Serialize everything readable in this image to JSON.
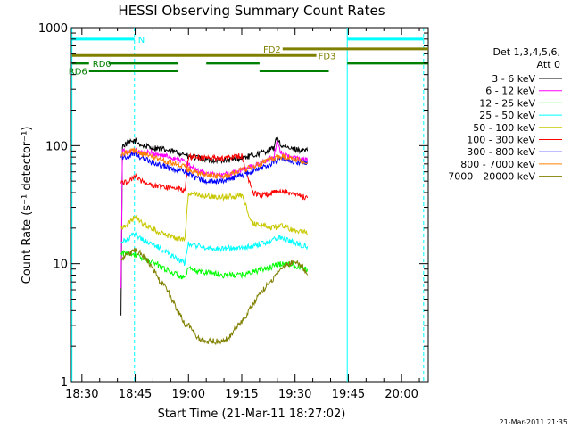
{
  "chart_data": {
    "type": "line",
    "title": "HESSI Observing Summary Count Rates",
    "xlabel": "Start Time (21-Mar-11 18:27:02)",
    "ylabel": "Count Rate (s⁻¹ detector⁻¹)",
    "y_scale": "log",
    "ylim": [
      1,
      1000
    ],
    "xlim": [
      "18:27:02",
      "20:07:30"
    ],
    "x_unit": "minutes after 18:00",
    "xlim_minutes": [
      27.03,
      127.5
    ],
    "x_ticks": [
      {
        "minute": 30,
        "label": "18:30"
      },
      {
        "minute": 45,
        "label": "18:45"
      },
      {
        "minute": 60,
        "label": "19:00"
      },
      {
        "minute": 75,
        "label": "19:15"
      },
      {
        "minute": 90,
        "label": "19:30"
      },
      {
        "minute": 105,
        "label": "19:45"
      },
      {
        "minute": 120,
        "label": "20:00"
      }
    ],
    "y_ticks": [
      {
        "value": 1,
        "label": "1"
      },
      {
        "value": 10,
        "label": "10"
      },
      {
        "value": 100,
        "label": "100"
      },
      {
        "value": 1000,
        "label": "1000"
      }
    ],
    "legend": {
      "position": "right",
      "header": [
        "Det 1,3,4,5,6,",
        "Att 0"
      ]
    },
    "grid": false,
    "series": [
      {
        "name": "3 - 6 keV",
        "color": "#000000",
        "points": [
          [
            41,
            3.5
          ],
          [
            41.4,
            100
          ],
          [
            43,
            105
          ],
          [
            45,
            110
          ],
          [
            47,
            100
          ],
          [
            51,
            95
          ],
          [
            55,
            90
          ],
          [
            59,
            85
          ],
          [
            60,
            80
          ],
          [
            63,
            78
          ],
          [
            66,
            76
          ],
          [
            69,
            75
          ],
          [
            72,
            76
          ],
          [
            75,
            79
          ],
          [
            78,
            82
          ],
          [
            81,
            88
          ],
          [
            84,
            95
          ],
          [
            85,
            120
          ],
          [
            86,
            100
          ],
          [
            88,
            95
          ],
          [
            91,
            92
          ],
          [
            93.5,
            90
          ]
        ]
      },
      {
        "name": "6 - 12 keV",
        "color": "#ff00ff",
        "points": [
          [
            41,
            6
          ],
          [
            41.4,
            90
          ],
          [
            43,
            88
          ],
          [
            45,
            90
          ],
          [
            47,
            88
          ],
          [
            51,
            85
          ],
          [
            55,
            80
          ],
          [
            59,
            74
          ],
          [
            60,
            68
          ],
          [
            63,
            60
          ],
          [
            66,
            57
          ],
          [
            69,
            56
          ],
          [
            72,
            58
          ],
          [
            75,
            62
          ],
          [
            78,
            67
          ],
          [
            81,
            73
          ],
          [
            84,
            80
          ],
          [
            85,
            110
          ],
          [
            86,
            88
          ],
          [
            88,
            80
          ],
          [
            91,
            78
          ],
          [
            93.5,
            75
          ]
        ]
      },
      {
        "name": "12 - 25 keV",
        "color": "#00ff00",
        "points": [
          [
            41,
            12
          ],
          [
            43,
            12.5
          ],
          [
            45,
            12
          ],
          [
            47,
            11
          ],
          [
            51,
            10
          ],
          [
            55,
            8.5
          ],
          [
            59,
            7.5
          ],
          [
            60,
            9
          ],
          [
            63,
            8.5
          ],
          [
            66,
            8.5
          ],
          [
            69,
            8
          ],
          [
            72,
            8
          ],
          [
            75,
            8
          ],
          [
            78,
            8.5
          ],
          [
            81,
            9
          ],
          [
            84,
            9.5
          ],
          [
            86,
            10
          ],
          [
            88,
            10
          ],
          [
            91,
            9.5
          ],
          [
            93.5,
            9
          ]
        ]
      },
      {
        "name": "25 - 50 keV",
        "color": "#00ffff",
        "points": [
          [
            41,
            15
          ],
          [
            43,
            16
          ],
          [
            45,
            18
          ],
          [
            47,
            16
          ],
          [
            51,
            14
          ],
          [
            55,
            12
          ],
          [
            59,
            10
          ],
          [
            60,
            15
          ],
          [
            63,
            14
          ],
          [
            66,
            13.5
          ],
          [
            69,
            13.5
          ],
          [
            72,
            13.5
          ],
          [
            75,
            13.5
          ],
          [
            78,
            14
          ],
          [
            81,
            15
          ],
          [
            84,
            16
          ],
          [
            86,
            17
          ],
          [
            88,
            16
          ],
          [
            91,
            14.5
          ],
          [
            93.5,
            14
          ]
        ]
      },
      {
        "name": "50 - 100 keV",
        "color": "#c8c800",
        "points": [
          [
            41,
            20
          ],
          [
            43,
            22
          ],
          [
            45,
            25
          ],
          [
            47,
            22
          ],
          [
            51,
            19
          ],
          [
            55,
            17
          ],
          [
            59,
            16
          ],
          [
            60,
            40
          ],
          [
            63,
            38
          ],
          [
            66,
            37
          ],
          [
            69,
            36.5
          ],
          [
            72,
            37
          ],
          [
            75,
            38
          ],
          [
            78,
            22
          ],
          [
            81,
            21
          ],
          [
            84,
            20
          ],
          [
            86,
            21
          ],
          [
            88,
            20
          ],
          [
            91,
            19
          ],
          [
            93.5,
            18
          ]
        ]
      },
      {
        "name": "100 - 300 keV",
        "color": "#ff0000",
        "points": [
          [
            41,
            48
          ],
          [
            43,
            50
          ],
          [
            45,
            55
          ],
          [
            47,
            50
          ],
          [
            51,
            45
          ],
          [
            55,
            44
          ],
          [
            59,
            42
          ],
          [
            60,
            80
          ],
          [
            63,
            80
          ],
          [
            66,
            78
          ],
          [
            69,
            78
          ],
          [
            72,
            80
          ],
          [
            75,
            82
          ],
          [
            78,
            40
          ],
          [
            81,
            38
          ],
          [
            84,
            40
          ],
          [
            86,
            42
          ],
          [
            88,
            40
          ],
          [
            91,
            38
          ],
          [
            93.5,
            36
          ]
        ]
      },
      {
        "name": "300 - 800 keV",
        "color": "#0000ff",
        "points": [
          [
            41,
            80
          ],
          [
            43,
            82
          ],
          [
            45,
            85
          ],
          [
            47,
            78
          ],
          [
            51,
            70
          ],
          [
            55,
            64
          ],
          [
            59,
            60
          ],
          [
            60,
            57
          ],
          [
            63,
            52
          ],
          [
            66,
            50
          ],
          [
            69,
            50
          ],
          [
            72,
            52
          ],
          [
            75,
            56
          ],
          [
            78,
            60
          ],
          [
            81,
            66
          ],
          [
            84,
            72
          ],
          [
            86,
            80
          ],
          [
            88,
            75
          ],
          [
            91,
            73
          ],
          [
            93.5,
            70
          ]
        ]
      },
      {
        "name": "800 - 7000 keV",
        "color": "#ff8000",
        "points": [
          [
            41,
            85
          ],
          [
            43,
            88
          ],
          [
            45,
            92
          ],
          [
            47,
            85
          ],
          [
            51,
            78
          ],
          [
            55,
            72
          ],
          [
            59,
            66
          ],
          [
            60,
            63
          ],
          [
            63,
            58
          ],
          [
            66,
            56
          ],
          [
            69,
            55
          ],
          [
            72,
            57
          ],
          [
            75,
            62
          ],
          [
            78,
            66
          ],
          [
            81,
            72
          ],
          [
            84,
            78
          ],
          [
            86,
            82
          ],
          [
            88,
            78
          ],
          [
            91,
            76
          ],
          [
            93.5,
            72
          ]
        ]
      },
      {
        "name": "7000 - 20000 keV",
        "color": "#808000",
        "points": [
          [
            41,
            11
          ],
          [
            43,
            12
          ],
          [
            45,
            13
          ],
          [
            46,
            12.5
          ],
          [
            48,
            11
          ],
          [
            50,
            9
          ],
          [
            52,
            7
          ],
          [
            54,
            6
          ],
          [
            56,
            4.5
          ],
          [
            58,
            3.5
          ],
          [
            59,
            3
          ],
          [
            60,
            3
          ],
          [
            62,
            2.5
          ],
          [
            64,
            2.2
          ],
          [
            66,
            2.2
          ],
          [
            68,
            2.2
          ],
          [
            70,
            2.2
          ],
          [
            72,
            2.5
          ],
          [
            74,
            3
          ],
          [
            76,
            3.5
          ],
          [
            78,
            4.5
          ],
          [
            80,
            5.5
          ],
          [
            82,
            6.5
          ],
          [
            84,
            7.5
          ],
          [
            86,
            9
          ],
          [
            88,
            10
          ],
          [
            90,
            10.5
          ],
          [
            92,
            9.5
          ],
          [
            93.5,
            8
          ]
        ]
      }
    ],
    "vertical_lines": [
      {
        "minute": 27.2,
        "style": "solid",
        "color": "#00ffff"
      },
      {
        "minute": 44.8,
        "style": "dashed",
        "color": "#00ffff"
      },
      {
        "minute": 104.7,
        "style": "solid",
        "color": "#00ffff"
      },
      {
        "minute": 126.2,
        "style": "dashed",
        "color": "#00ffff"
      }
    ],
    "flag_bars": [
      {
        "label": "N",
        "color": "#00ffff",
        "value": 800,
        "segments": [
          [
            27.2,
            44.8
          ],
          [
            104.7,
            126.2
          ]
        ]
      },
      {
        "label": "FD2",
        "color": "#808000",
        "value": 660,
        "segments": [
          [
            86.5,
            127.5
          ]
        ]
      },
      {
        "label": "FD3",
        "color": "#808000",
        "value": 580,
        "segments": [
          [
            27.2,
            96
          ]
        ]
      },
      {
        "label": "RD0",
        "color": "#008000",
        "value": 500,
        "segments": [
          [
            27.2,
            32
          ],
          [
            37.5,
            57
          ],
          [
            65,
            80
          ],
          [
            104.7,
            127.5
          ]
        ]
      },
      {
        "label": "RD6",
        "color": "#008000",
        "value": 430,
        "segments": [
          [
            32,
            57
          ],
          [
            80,
            99.5
          ]
        ]
      }
    ]
  },
  "footer": {
    "timestamp": "21-Mar-2011 21:35"
  }
}
